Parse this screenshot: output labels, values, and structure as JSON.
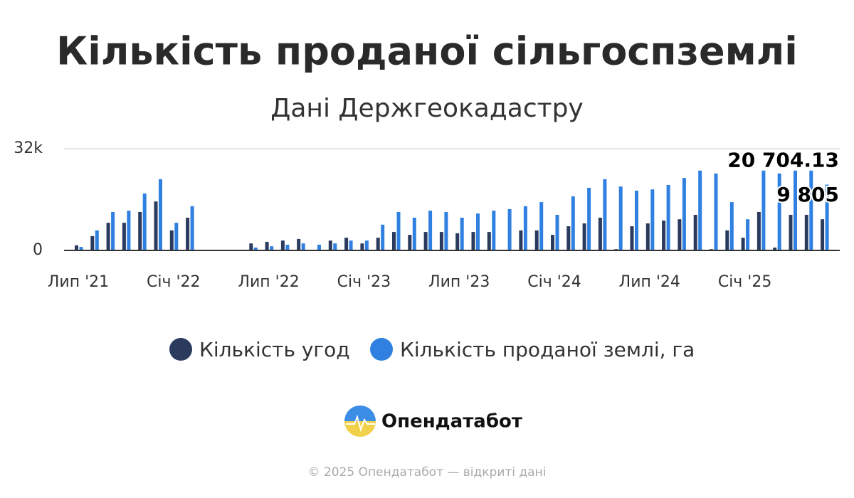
{
  "title": "Кількість проданої сільгоспземлі",
  "subtitle": "Дані Держгеокадастру",
  "chart_data": {
    "type": "bar",
    "categories": [
      "Лип '21",
      null,
      null,
      null,
      null,
      null,
      "Січ '22",
      null,
      null,
      null,
      null,
      null,
      "Лип '22",
      null,
      null,
      null,
      null,
      null,
      "Січ '23",
      null,
      null,
      null,
      null,
      null,
      "Лип '23",
      null,
      null,
      null,
      null,
      null,
      "Січ '24",
      null,
      null,
      null,
      null,
      null,
      "Лип '24",
      null,
      null,
      null,
      null,
      null,
      "Січ '25",
      null,
      null,
      null,
      null,
      null
    ],
    "series": [
      {
        "name": "Кількість угод",
        "color": "#2b3b5e",
        "values": [
          1600,
          4500,
          8700,
          8700,
          12100,
          15400,
          6300,
          10300,
          null,
          null,
          null,
          2200,
          2700,
          3100,
          3600,
          null,
          3100,
          4000,
          2200,
          4000,
          5800,
          4900,
          5800,
          5800,
          5400,
          5800,
          5800,
          null,
          6300,
          6300,
          4900,
          7600,
          8500,
          10300,
          400,
          7600,
          8500,
          9400,
          9800,
          11200,
          400,
          6300,
          4000,
          12100,
          900,
          11200,
          11200,
          9805
        ],
        "value_labels": [
          null,
          null,
          null,
          null,
          null,
          null,
          null,
          null,
          null,
          null,
          null,
          null,
          null,
          null,
          null,
          null,
          null,
          null,
          null,
          null,
          null,
          null,
          null,
          null,
          null,
          null,
          null,
          null,
          null,
          null,
          null,
          null,
          null,
          null,
          null,
          null,
          null,
          null,
          null,
          null,
          null,
          null,
          null,
          null,
          null,
          null,
          null,
          "9 805"
        ]
      },
      {
        "name": "Кількість проданої землі, га",
        "color": "#2f80e0",
        "values": [
          1100,
          6300,
          12100,
          12500,
          17900,
          22400,
          8700,
          13900,
          null,
          null,
          null,
          900,
          1300,
          1800,
          2200,
          1800,
          2200,
          3100,
          3100,
          8100,
          12100,
          10300,
          12500,
          12100,
          10300,
          11600,
          12500,
          13000,
          13900,
          15200,
          11200,
          17000,
          19700,
          22400,
          20100,
          18800,
          19200,
          20600,
          22800,
          25100,
          24200,
          15200,
          9800,
          25100,
          24200,
          25100,
          25100,
          20704.13
        ],
        "value_labels": [
          null,
          null,
          null,
          null,
          null,
          null,
          null,
          null,
          null,
          null,
          null,
          null,
          null,
          null,
          null,
          null,
          null,
          null,
          null,
          null,
          null,
          null,
          null,
          null,
          null,
          null,
          null,
          null,
          null,
          null,
          null,
          null,
          null,
          null,
          null,
          null,
          null,
          null,
          null,
          null,
          null,
          null,
          null,
          null,
          null,
          null,
          null,
          "20 704.13"
        ]
      }
    ],
    "ylim": [
      0,
      32000
    ],
    "yticks": [
      0,
      {
        "value": 32000,
        "label": "32k"
      }
    ],
    "grid": true
  },
  "logo": "Опендатабот",
  "footer": "© 2025 Опендатабот — відкриті дані"
}
